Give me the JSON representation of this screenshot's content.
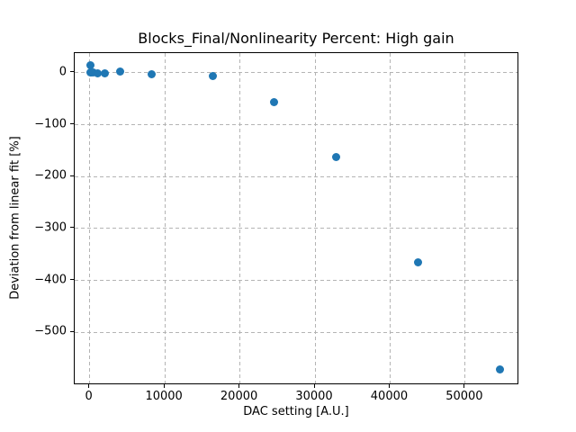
{
  "chart_data": {
    "type": "scatter",
    "title": "Blocks_Final/Nonlinearity Percent: High gain",
    "xlabel": "DAC setting [A.U.]",
    "ylabel": "Deviation from linear fit [%]",
    "marker_color": "#1f77b4",
    "grid": true,
    "grid_style": "dashed",
    "grid_color": "#b4b4b4",
    "legend": "none",
    "xlim": [
      -2000,
      57200
    ],
    "ylim": [
      -602,
      38
    ],
    "x_tick_values": [
      0,
      10000,
      20000,
      30000,
      40000,
      50000
    ],
    "x_tick_labels": [
      "0",
      "10000",
      "20000",
      "30000",
      "40000",
      "50000"
    ],
    "y_tick_values": [
      0,
      -100,
      -200,
      -300,
      -400,
      -500
    ],
    "y_tick_labels": [
      "0",
      "−100",
      "−200",
      "−300",
      "−400",
      "−500"
    ],
    "points": [
      {
        "x": 64,
        "y": 0
      },
      {
        "x": 128,
        "y": 15
      },
      {
        "x": 256,
        "y": 1
      },
      {
        "x": 512,
        "y": 0
      },
      {
        "x": 1024,
        "y": -1
      },
      {
        "x": 2048,
        "y": -1
      },
      {
        "x": 4096,
        "y": 3
      },
      {
        "x": 8192,
        "y": -2
      },
      {
        "x": 16384,
        "y": -7
      },
      {
        "x": 24576,
        "y": -57
      },
      {
        "x": 32768,
        "y": -162
      },
      {
        "x": 43690,
        "y": -365
      },
      {
        "x": 54613,
        "y": -572
      }
    ]
  }
}
